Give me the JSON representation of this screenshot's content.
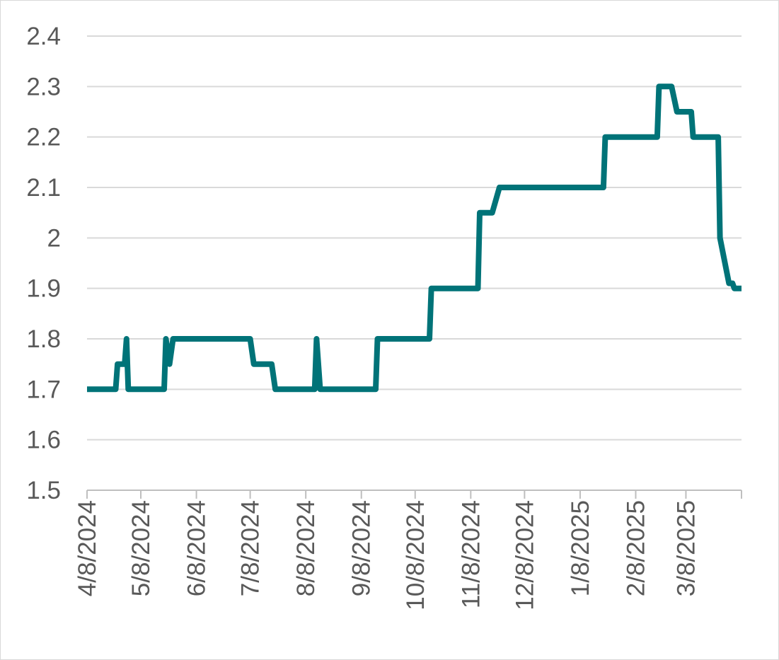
{
  "chart_data": {
    "type": "line",
    "title": "",
    "xlabel": "",
    "ylabel": "",
    "ylim": [
      1.5,
      2.4
    ],
    "yticks": [
      "1.5",
      "1.6",
      "1.7",
      "1.8",
      "1.9",
      "2",
      "2.1",
      "2.2",
      "2.3",
      "2.4"
    ],
    "xlim": [
      "2024-04-08",
      "2025-04-08"
    ],
    "xticks": [
      {
        "date": "2024-04-08",
        "label": "4/8/2024"
      },
      {
        "date": "2024-05-08",
        "label": "5/8/2024"
      },
      {
        "date": "2024-06-08",
        "label": "6/8/2024"
      },
      {
        "date": "2024-07-08",
        "label": "7/8/2024"
      },
      {
        "date": "2024-08-08",
        "label": "8/8/2024"
      },
      {
        "date": "2024-09-08",
        "label": "9/8/2024"
      },
      {
        "date": "2024-10-08",
        "label": "10/8/2024"
      },
      {
        "date": "2024-11-08",
        "label": "11/8/2024"
      },
      {
        "date": "2024-12-08",
        "label": "12/8/2024"
      },
      {
        "date": "2025-01-08",
        "label": "1/8/2025"
      },
      {
        "date": "2025-02-08",
        "label": "2/8/2025"
      },
      {
        "date": "2025-03-08",
        "label": "3/8/2025"
      }
    ],
    "grid": true,
    "legend": "none",
    "series": [
      {
        "color": "#007378",
        "points": [
          [
            "2024-04-08",
            1.7
          ],
          [
            "2024-04-24",
            1.7
          ],
          [
            "2024-04-25",
            1.75
          ],
          [
            "2024-04-29",
            1.75
          ],
          [
            "2024-04-30",
            1.8
          ],
          [
            "2024-05-01",
            1.7
          ],
          [
            "2024-05-21",
            1.7
          ],
          [
            "2024-05-22",
            1.8
          ],
          [
            "2024-05-24",
            1.75
          ],
          [
            "2024-05-26",
            1.8
          ],
          [
            "2024-07-08",
            1.8
          ],
          [
            "2024-07-10",
            1.75
          ],
          [
            "2024-07-20",
            1.75
          ],
          [
            "2024-07-22",
            1.7
          ],
          [
            "2024-08-13",
            1.7
          ],
          [
            "2024-08-14",
            1.8
          ],
          [
            "2024-08-16",
            1.7
          ],
          [
            "2024-09-16",
            1.7
          ],
          [
            "2024-09-17",
            1.8
          ],
          [
            "2024-10-16",
            1.8
          ],
          [
            "2024-10-17",
            1.9
          ],
          [
            "2024-11-12",
            1.9
          ],
          [
            "2024-11-13",
            2.05
          ],
          [
            "2024-11-20",
            2.05
          ],
          [
            "2024-11-24",
            2.1
          ],
          [
            "2025-01-21",
            2.1
          ],
          [
            "2025-01-22",
            2.2
          ],
          [
            "2025-02-20",
            2.2
          ],
          [
            "2025-02-21",
            2.3
          ],
          [
            "2025-02-28",
            2.3
          ],
          [
            "2025-03-03",
            2.25
          ],
          [
            "2025-03-11",
            2.25
          ],
          [
            "2025-03-12",
            2.2
          ],
          [
            "2025-03-26",
            2.2
          ],
          [
            "2025-03-27",
            2.0
          ],
          [
            "2025-04-01",
            1.91
          ],
          [
            "2025-04-03",
            1.91
          ],
          [
            "2025-04-04",
            1.9
          ],
          [
            "2025-04-08",
            1.9
          ]
        ]
      }
    ]
  }
}
